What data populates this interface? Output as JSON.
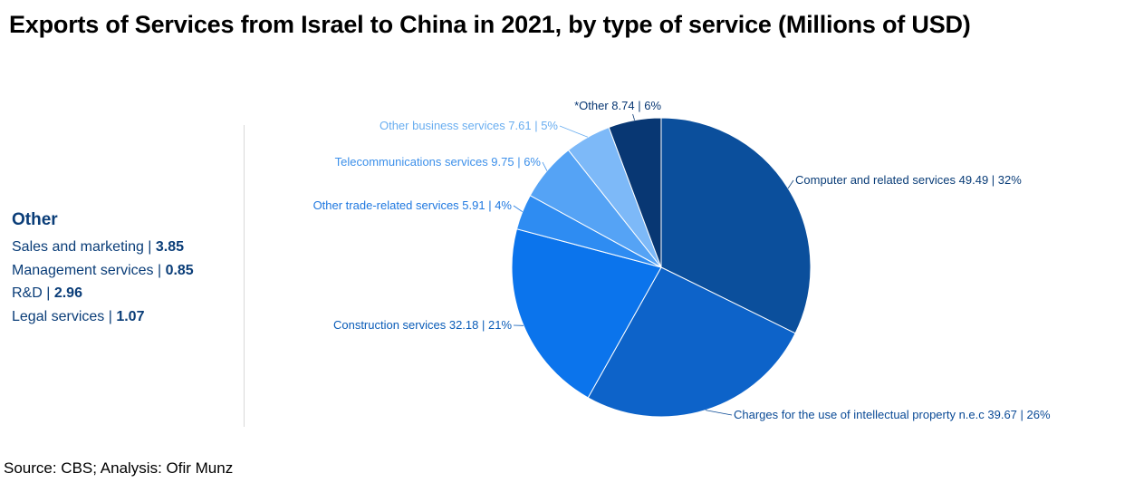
{
  "title": "Exports of Services from Israel to China in 2021, by type of service (Millions of USD)",
  "source": "Source: CBS; Analysis: Ofir Munz",
  "other_box": {
    "heading": "Other",
    "items": [
      {
        "label": "Sales and marketing | ",
        "value": "3.85"
      },
      {
        "label": "Management services | ",
        "value": "0.85"
      },
      {
        "label": "R&D | ",
        "value": "2.96"
      },
      {
        "label": "Legal services | ",
        "value": "1.07"
      }
    ]
  },
  "chart_data": {
    "type": "pie",
    "title": "Exports of Services from Israel to China in 2021, by type of service (Millions of USD)",
    "unit": "Millions of USD",
    "slices": [
      {
        "name": "Computer and related services",
        "value": 49.49,
        "percent": 32,
        "label": "Computer and related services 49.49 | 32%",
        "color": "#0b4f9c",
        "label_color": "#0a3d78"
      },
      {
        "name": "Charges for the use of intellectual property n.e.c",
        "value": 39.67,
        "percent": 26,
        "label": "Charges for the use of intellectual property n.e.c 39.67 | 26%",
        "color": "#0d63c9",
        "label_color": "#0a4a96"
      },
      {
        "name": "Construction services",
        "value": 32.18,
        "percent": 21,
        "label": "Construction services 32.18 | 21%",
        "color": "#0b74ec",
        "label_color": "#0a5cb8"
      },
      {
        "name": "Other trade-related services",
        "value": 5.91,
        "percent": 4,
        "label": "Other trade-related services 5.91 | 4%",
        "color": "#2e8cf2",
        "label_color": "#1f78e0"
      },
      {
        "name": "Telecommunications services",
        "value": 9.75,
        "percent": 6,
        "label": "Telecommunications services 9.75 | 6%",
        "color": "#55a3f5",
        "label_color": "#3d90ea"
      },
      {
        "name": "Other business services",
        "value": 7.61,
        "percent": 5,
        "label": "Other business services 7.61 | 5%",
        "color": "#7db9f8",
        "label_color": "#6aaef0"
      },
      {
        "name": "*Other",
        "value": 8.74,
        "percent": 6,
        "label": "*Other 8.74 | 6%",
        "color": "#083773",
        "label_color": "#083773"
      }
    ],
    "start_angle_deg": 0,
    "direction": "clockwise",
    "legend": "none"
  }
}
